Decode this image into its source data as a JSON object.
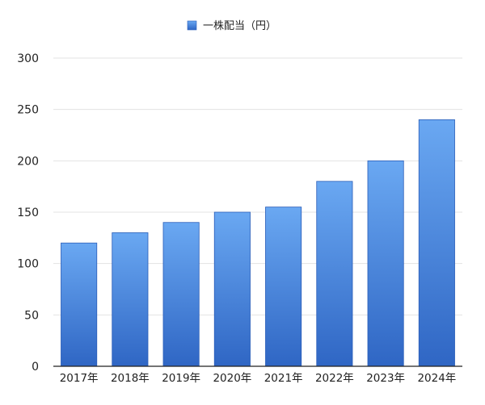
{
  "chart_data": {
    "type": "bar",
    "title": "",
    "xlabel": "",
    "ylabel": "",
    "categories": [
      "2017年",
      "2018年",
      "2019年",
      "2020年",
      "2021年",
      "2022年",
      "2023年",
      "2024年"
    ],
    "series": [
      {
        "name": "一株配当（円）",
        "values": [
          120,
          130,
          140,
          150,
          155,
          180,
          200,
          240
        ]
      }
    ],
    "ylim": [
      0,
      300
    ],
    "yticks": [
      0,
      50,
      100,
      150,
      200,
      250,
      300
    ],
    "grid": true,
    "legend_position": "top-center",
    "colors": {
      "bar_top": "#6aa8f2",
      "bar_bottom": "#2f66c4",
      "bar_stroke": "#2a5db8",
      "grid": "#e3e3e3",
      "axis": "#222222"
    }
  }
}
